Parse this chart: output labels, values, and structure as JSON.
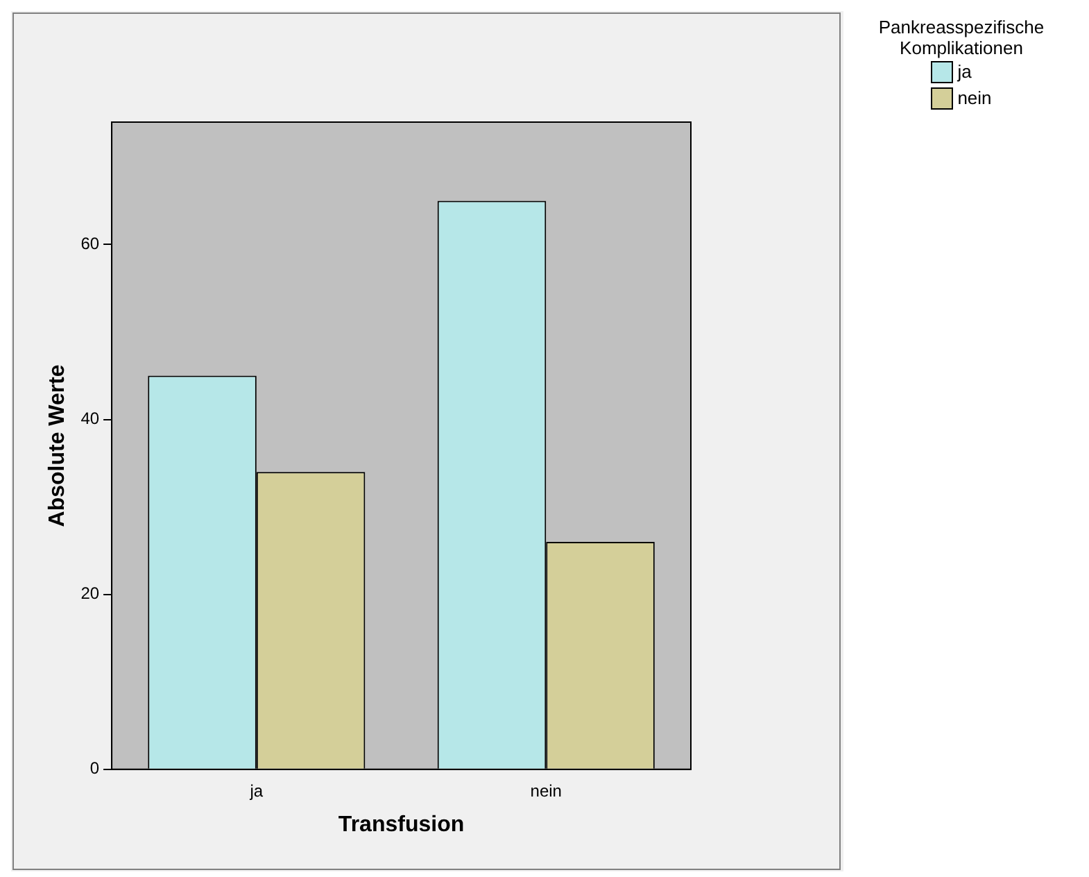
{
  "chart_data": {
    "type": "bar",
    "xlabel": "Transfusion",
    "ylabel": "Absolute Werte",
    "legend_title": "Pankreasspezifische Komplikationen",
    "categories": [
      "ja",
      "nein"
    ],
    "series": [
      {
        "name": "ja",
        "color": "#b6e7e8",
        "values": [
          45,
          65
        ]
      },
      {
        "name": "nein",
        "color": "#d4cf99",
        "values": [
          34,
          26
        ]
      }
    ],
    "ylim": [
      0,
      74
    ],
    "yticks": [
      0,
      20,
      40,
      60
    ],
    "grid": false,
    "legend": "top right"
  }
}
